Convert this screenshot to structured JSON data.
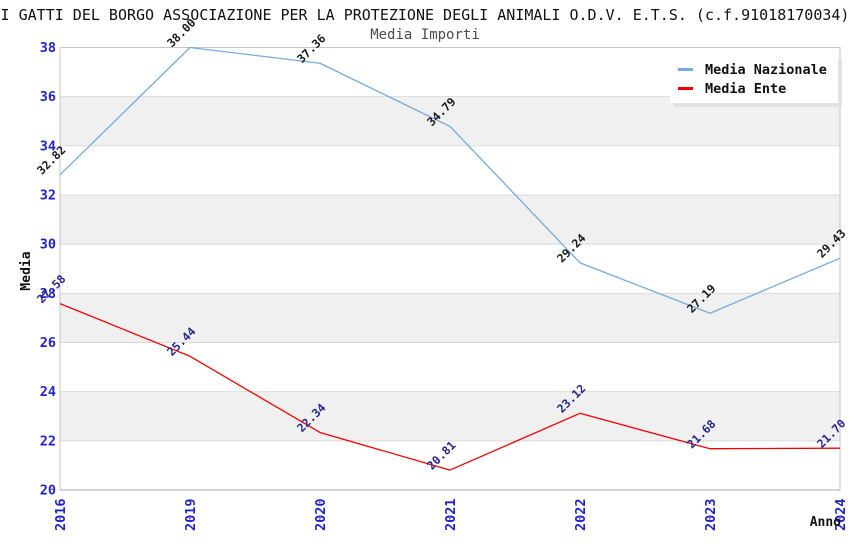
{
  "page": {
    "title": "I GATTI DEL BORGO ASSOCIAZIONE PER LA PROTEZIONE DEGLI ANIMALI O.D.V. E.T.S. (c.f.91018170034)"
  },
  "chart_data": {
    "type": "line",
    "title": "Media Importi",
    "xlabel": "Anno",
    "ylabel": "Media",
    "categories": [
      "2016",
      "2019",
      "2020",
      "2021",
      "2022",
      "2023",
      "2024"
    ],
    "series": [
      {
        "name": "Media Nazionale",
        "color": "#74AADF",
        "label_color": "#1A1A1A",
        "values": [
          32.82,
          38.0,
          37.36,
          34.79,
          29.24,
          27.19,
          29.43
        ]
      },
      {
        "name": "Media Ente",
        "color": "#F40000",
        "label_color": "#26268F",
        "values": [
          27.58,
          25.44,
          22.34,
          20.81,
          23.12,
          21.68,
          21.7
        ]
      }
    ],
    "ylim": [
      20,
      38
    ],
    "ytick_step": 2,
    "yticks": [
      20,
      22,
      24,
      26,
      28,
      30,
      32,
      34,
      36,
      38
    ],
    "grid": "horizontal-lines-with-alternating-bands",
    "legend_position": "top-right",
    "value_labels_shown": true,
    "colors": {
      "tick_label": "#2222CC",
      "band_fill": "#F0F0F0",
      "grid_line": "#DBDBDB",
      "plot_border": "#C6C6C6",
      "axis_title": "#111111",
      "subtitle": "#4A4A4A"
    }
  }
}
